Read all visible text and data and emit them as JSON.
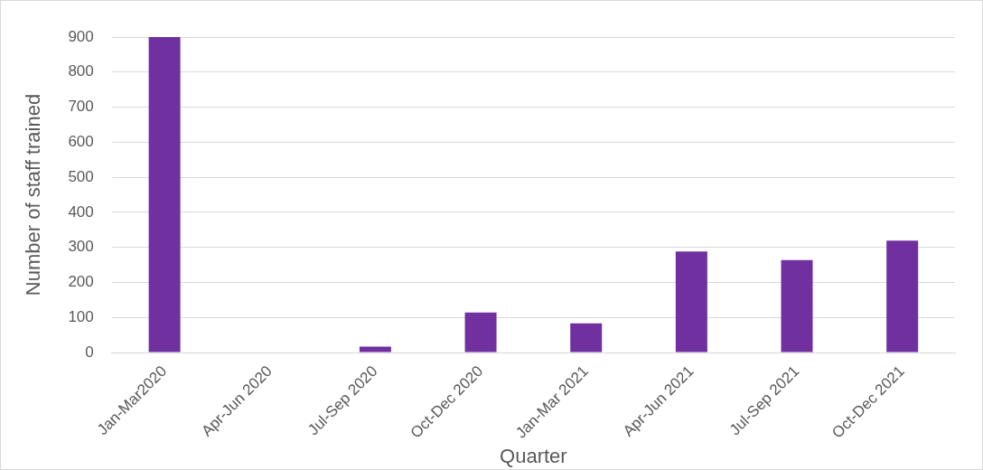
{
  "chart_data": {
    "type": "bar",
    "xlabel": "Quarter",
    "ylabel": "Number of staff trained",
    "categories": [
      "Jan-Mar2020",
      "Apr-Jun 2020",
      "Jul-Sep 2020",
      "Oct-Dec 2020",
      "Jan-Mar 2021",
      "Apr-Jun 2021",
      "Jul-Sep 2021",
      "Oct-Dec 2021"
    ],
    "values": [
      900,
      0,
      17,
      114,
      83,
      288,
      264,
      319
    ],
    "color": "#7030a0",
    "ylim": [
      0,
      900
    ],
    "yticks": [
      0,
      100,
      200,
      300,
      400,
      500,
      600,
      700,
      800,
      900
    ],
    "grid": "y"
  }
}
